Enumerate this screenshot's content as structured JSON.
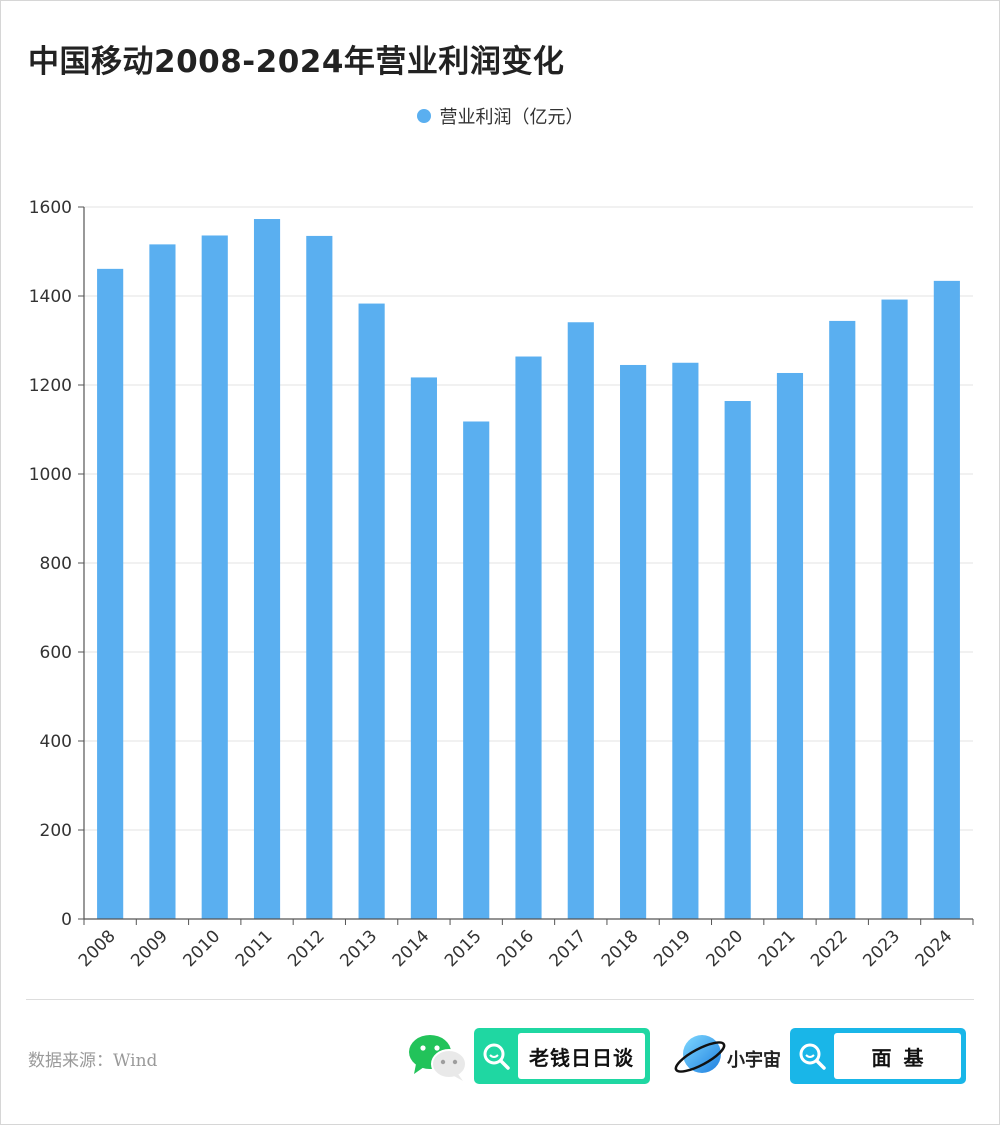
{
  "title": "中国移动2008-2024年营业利润变化",
  "colors": {
    "bar": "#5aaff0",
    "grid": "#e3e3e3",
    "axis": "#555555",
    "badge1": "#1fd7a2",
    "badge2": "#19b6e8"
  },
  "chart_data": {
    "type": "bar",
    "title": "中国移动2008-2024年营业利润变化",
    "categories": [
      "2008",
      "2009",
      "2010",
      "2011",
      "2012",
      "2013",
      "2014",
      "2015",
      "2016",
      "2017",
      "2018",
      "2019",
      "2020",
      "2021",
      "2022",
      "2023",
      "2024"
    ],
    "series": [
      {
        "name": "营业利润（亿元）",
        "values": [
          1461,
          1516,
          1536,
          1573,
          1535,
          1383,
          1217,
          1118,
          1264,
          1341,
          1245,
          1250,
          1164,
          1227,
          1344,
          1392,
          1434
        ]
      }
    ],
    "ylim": [
      0,
      1600
    ],
    "yticks": [
      0,
      200,
      400,
      600,
      800,
      1000,
      1200,
      1400,
      1600
    ],
    "grid": true,
    "legend_position": "top-center",
    "xlabel": "",
    "ylabel": ""
  },
  "footer": {
    "source": "数据来源：Wind",
    "wechat_icon": "wechat-icon",
    "badge1_label": "老钱日日谈",
    "brand2_label": "小宇宙",
    "badge2_label": "面基",
    "search_icon": "search-icon",
    "planet_icon": "planet-icon"
  }
}
